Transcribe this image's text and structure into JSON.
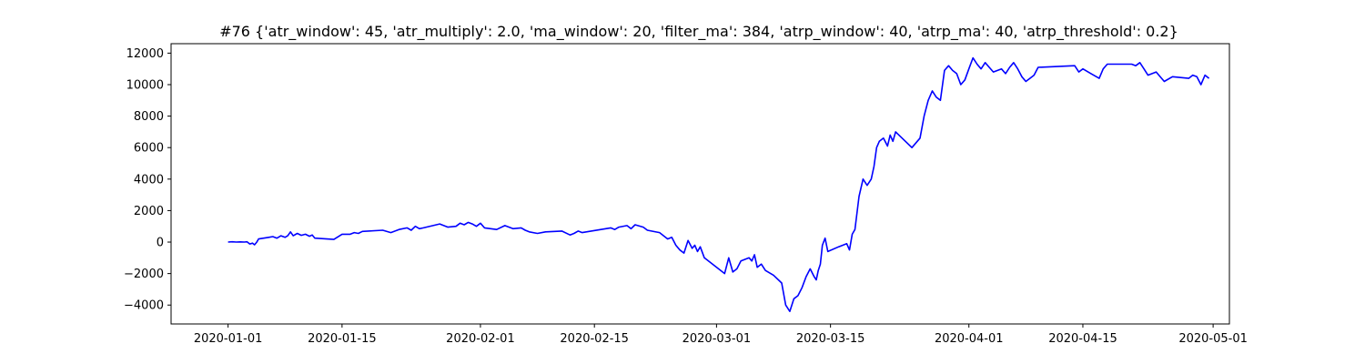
{
  "chart_data": {
    "type": "line",
    "title": "#76 {'atr_window': 45, 'atr_multiply': 2.0, 'ma_window': 20, 'filter_ma': 384, 'atrp_window': 40, 'atrp_ma': 40, 'atrp_threshold': 0.2}",
    "xlabel": "",
    "ylabel": "",
    "grid": false,
    "xlim": [
      "2019-12-25",
      "2020-05-03"
    ],
    "ylim": [
      -5200,
      12600
    ],
    "x_ticks": [
      "2020-01-01",
      "2020-01-15",
      "2020-02-01",
      "2020-02-15",
      "2020-03-01",
      "2020-03-15",
      "2020-04-01",
      "2020-04-15",
      "2020-05-01"
    ],
    "y_ticks": [
      -4000,
      -2000,
      0,
      2000,
      4000,
      6000,
      8000,
      10000,
      12000
    ],
    "series": [
      {
        "color": "#0000ff",
        "points": [
          [
            "2020-01-01",
            0
          ],
          [
            "2020-01-01",
            20
          ],
          [
            "2020-01-02",
            0
          ],
          [
            "2020-01-02",
            10
          ],
          [
            "2020-01-03",
            0
          ],
          [
            "2020-01-03",
            20
          ],
          [
            "2020-01-03",
            -120
          ],
          [
            "2020-01-04",
            -70
          ],
          [
            "2020-01-04",
            -170
          ],
          [
            "2020-01-04",
            -20
          ],
          [
            "2020-01-04",
            200
          ],
          [
            "2020-01-06",
            300
          ],
          [
            "2020-01-06",
            350
          ],
          [
            "2020-01-07",
            250
          ],
          [
            "2020-01-07",
            400
          ],
          [
            "2020-01-08",
            300
          ],
          [
            "2020-01-08",
            400
          ],
          [
            "2020-01-08",
            650
          ],
          [
            "2020-01-09",
            400
          ],
          [
            "2020-01-09",
            550
          ],
          [
            "2020-01-10",
            430
          ],
          [
            "2020-01-10",
            500
          ],
          [
            "2020-01-11",
            370
          ],
          [
            "2020-01-11",
            450
          ],
          [
            "2020-01-11",
            250
          ],
          [
            "2020-01-14",
            170
          ],
          [
            "2020-01-15",
            500
          ],
          [
            "2020-01-16",
            500
          ],
          [
            "2020-01-16",
            600
          ],
          [
            "2020-01-17",
            550
          ],
          [
            "2020-01-17",
            680
          ],
          [
            "2020-01-20",
            750
          ],
          [
            "2020-01-21",
            600
          ],
          [
            "2020-01-22",
            800
          ],
          [
            "2020-01-23",
            900
          ],
          [
            "2020-01-23",
            750
          ],
          [
            "2020-01-24",
            1000
          ],
          [
            "2020-01-24",
            850
          ],
          [
            "2020-01-25",
            900
          ],
          [
            "2020-01-27",
            1150
          ],
          [
            "2020-01-28",
            950
          ],
          [
            "2020-01-29",
            1000
          ],
          [
            "2020-01-29",
            1200
          ],
          [
            "2020-01-30",
            1100
          ],
          [
            "2020-01-30",
            1250
          ],
          [
            "2020-01-31",
            1150
          ],
          [
            "2020-01-31",
            1000
          ],
          [
            "2020-02-01",
            1200
          ],
          [
            "2020-02-01",
            900
          ],
          [
            "2020-02-03",
            800
          ],
          [
            "2020-02-04",
            1050
          ],
          [
            "2020-02-05",
            850
          ],
          [
            "2020-02-06",
            900
          ],
          [
            "2020-02-06",
            750
          ],
          [
            "2020-02-07",
            650
          ],
          [
            "2020-02-08",
            550
          ],
          [
            "2020-02-09",
            650
          ],
          [
            "2020-02-11",
            700
          ],
          [
            "2020-02-12",
            450
          ],
          [
            "2020-02-12",
            550
          ],
          [
            "2020-02-13",
            700
          ],
          [
            "2020-02-13",
            600
          ],
          [
            "2020-02-17",
            900
          ],
          [
            "2020-02-17",
            800
          ],
          [
            "2020-02-18",
            950
          ],
          [
            "2020-02-19",
            1050
          ],
          [
            "2020-02-19",
            850
          ],
          [
            "2020-02-20",
            1100
          ],
          [
            "2020-02-21",
            950
          ],
          [
            "2020-02-21",
            750
          ],
          [
            "2020-02-23",
            600
          ],
          [
            "2020-02-24",
            200
          ],
          [
            "2020-02-24",
            300
          ],
          [
            "2020-02-25",
            -200
          ],
          [
            "2020-02-25",
            -500
          ],
          [
            "2020-02-26",
            -700
          ],
          [
            "2020-02-26",
            100
          ],
          [
            "2020-02-27",
            -400
          ],
          [
            "2020-02-27",
            -200
          ],
          [
            "2020-02-27",
            -600
          ],
          [
            "2020-02-28",
            -300
          ],
          [
            "2020-02-28",
            -1000
          ],
          [
            "2020-03-02",
            -2000
          ],
          [
            "2020-03-02",
            -1000
          ],
          [
            "2020-03-03",
            -1900
          ],
          [
            "2020-03-03",
            -1700
          ],
          [
            "2020-03-04",
            -1200
          ],
          [
            "2020-03-05",
            -1000
          ],
          [
            "2020-03-05",
            -1200
          ],
          [
            "2020-03-05",
            -800
          ],
          [
            "2020-03-06",
            -1600
          ],
          [
            "2020-03-06",
            -1400
          ],
          [
            "2020-03-07",
            -1800
          ],
          [
            "2020-03-08",
            -2100
          ],
          [
            "2020-03-09",
            -2600
          ],
          [
            "2020-03-09",
            -4000
          ],
          [
            "2020-03-10",
            -4400
          ],
          [
            "2020-03-10",
            -3600
          ],
          [
            "2020-03-11",
            -3400
          ],
          [
            "2020-03-11",
            -2900
          ],
          [
            "2020-03-12",
            -2200
          ],
          [
            "2020-03-12",
            -1700
          ],
          [
            "2020-03-13",
            -2200
          ],
          [
            "2020-03-13",
            -2400
          ],
          [
            "2020-03-13",
            -1800
          ],
          [
            "2020-03-13",
            -1400
          ],
          [
            "2020-03-14",
            -200
          ],
          [
            "2020-03-14",
            250
          ],
          [
            "2020-03-14",
            -600
          ],
          [
            "2020-03-16",
            -300
          ],
          [
            "2020-03-17",
            -100
          ],
          [
            "2020-03-17",
            -500
          ],
          [
            "2020-03-17",
            500
          ],
          [
            "2020-03-18",
            800
          ],
          [
            "2020-03-18",
            2900
          ],
          [
            "2020-03-19",
            4000
          ],
          [
            "2020-03-19",
            3600
          ],
          [
            "2020-03-20",
            4000
          ],
          [
            "2020-03-20",
            4800
          ],
          [
            "2020-03-20",
            6000
          ],
          [
            "2020-03-21",
            6400
          ],
          [
            "2020-03-21",
            6600
          ],
          [
            "2020-03-22",
            6100
          ],
          [
            "2020-03-22",
            6800
          ],
          [
            "2020-03-22",
            6400
          ],
          [
            "2020-03-23",
            7000
          ],
          [
            "2020-03-25",
            6000
          ],
          [
            "2020-03-26",
            6600
          ],
          [
            "2020-03-26",
            8000
          ],
          [
            "2020-03-27",
            9000
          ],
          [
            "2020-03-27",
            9600
          ],
          [
            "2020-03-28",
            9200
          ],
          [
            "2020-03-28",
            9000
          ],
          [
            "2020-03-29",
            10900
          ],
          [
            "2020-03-29",
            11200
          ],
          [
            "2020-03-30",
            10900
          ],
          [
            "2020-03-30",
            10700
          ],
          [
            "2020-03-31",
            10000
          ],
          [
            "2020-03-31",
            10300
          ],
          [
            "2020-04-01",
            11000
          ],
          [
            "2020-04-01",
            11700
          ],
          [
            "2020-04-02",
            11300
          ],
          [
            "2020-04-02",
            11000
          ],
          [
            "2020-04-03",
            11400
          ],
          [
            "2020-04-03",
            11100
          ],
          [
            "2020-04-04",
            10800
          ],
          [
            "2020-04-05",
            11000
          ],
          [
            "2020-04-05",
            10700
          ],
          [
            "2020-04-06",
            11100
          ],
          [
            "2020-04-06",
            11400
          ],
          [
            "2020-04-07",
            11000
          ],
          [
            "2020-04-07",
            10500
          ],
          [
            "2020-04-08",
            10200
          ],
          [
            "2020-04-08",
            10400
          ],
          [
            "2020-04-09",
            10600
          ],
          [
            "2020-04-09",
            11100
          ],
          [
            "2020-04-14",
            11200
          ],
          [
            "2020-04-14",
            10800
          ],
          [
            "2020-04-15",
            11000
          ],
          [
            "2020-04-16",
            10700
          ],
          [
            "2020-04-17",
            10400
          ],
          [
            "2020-04-17",
            11000
          ],
          [
            "2020-04-18",
            11300
          ],
          [
            "2020-04-21",
            11300
          ],
          [
            "2020-04-21",
            11200
          ],
          [
            "2020-04-22",
            11400
          ],
          [
            "2020-04-22",
            11000
          ],
          [
            "2020-04-23",
            10600
          ],
          [
            "2020-04-24",
            10800
          ],
          [
            "2020-04-25",
            10200
          ],
          [
            "2020-04-26",
            10500
          ],
          [
            "2020-04-28",
            10400
          ],
          [
            "2020-04-28",
            10600
          ],
          [
            "2020-04-29",
            10500
          ],
          [
            "2020-04-29",
            10000
          ],
          [
            "2020-04-30",
            10600
          ],
          [
            "2020-04-30",
            10400
          ]
        ]
      }
    ]
  }
}
